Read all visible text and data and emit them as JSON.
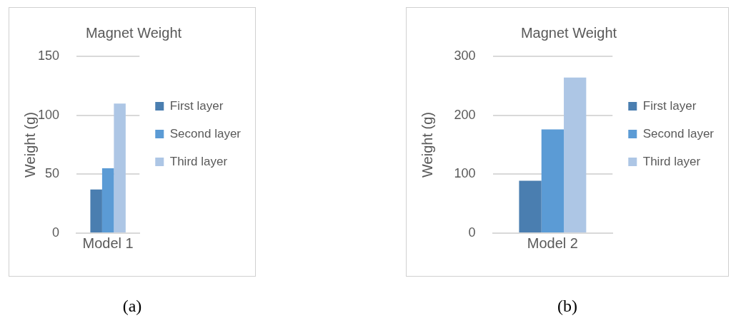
{
  "chart_data": [
    {
      "type": "bar",
      "title": "Magnet Weight",
      "ylabel": "Weight (g)",
      "categories": [
        "Model 1"
      ],
      "series": [
        {
          "name": "First layer",
          "color": "#4a7eb0",
          "values": [
            37
          ]
        },
        {
          "name": "Second layer",
          "color": "#5b9bd5",
          "values": [
            55
          ]
        },
        {
          "name": "Third layer",
          "color": "#adc6e5",
          "values": [
            110
          ]
        }
      ],
      "ylim": [
        0,
        150
      ],
      "yticks": [
        0,
        50,
        100,
        150
      ],
      "grid": "y",
      "legend": "right",
      "annotations": [
        "(a)"
      ]
    },
    {
      "type": "bar",
      "title": "Magnet Weight",
      "ylabel": "Weight (g)",
      "categories": [
        "Model 2"
      ],
      "series": [
        {
          "name": "First layer",
          "color": "#4a7eb0",
          "values": [
            89
          ]
        },
        {
          "name": "Second layer",
          "color": "#5b9bd5",
          "values": [
            176
          ]
        },
        {
          "name": "Third layer",
          "color": "#adc6e5",
          "values": [
            264
          ]
        }
      ],
      "ylim": [
        0,
        300
      ],
      "yticks": [
        0,
        100,
        200,
        300
      ],
      "grid": "y",
      "legend": "right",
      "annotations": [
        "(b)"
      ]
    }
  ]
}
